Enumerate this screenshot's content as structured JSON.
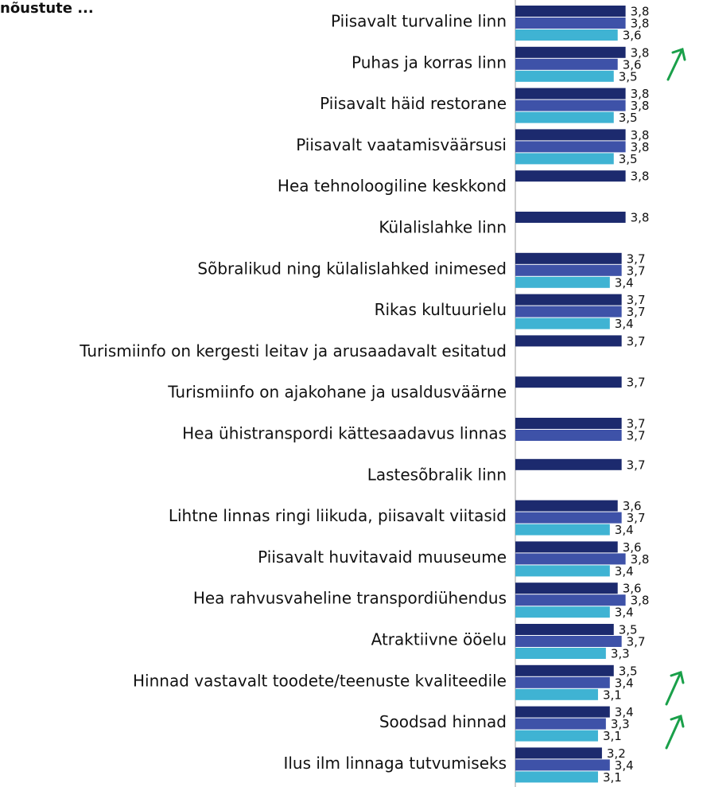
{
  "chart_data": {
    "type": "hbar",
    "title": "nõustute ...",
    "categories": [
      "Piisavalt turvaline linn",
      "Puhas ja korras linn",
      "Piisavalt häid restorane",
      "Piisavalt vaatamisväärsusi",
      "Hea tehnoloogiline keskkond",
      "Külalislahke linn",
      "Sõbralikud ning külalislahked inimesed",
      "Rikas kultuurielu",
      "Turismiinfo on kergesti leitav ja arusaadavalt esitatud",
      "Turismiinfo on ajakohane ja usaldusväärne",
      "Hea ühistranspordi kättesaadavus linnas",
      "Lastesõbralik linn",
      "Lihtne linnas ringi liikuda, piisavalt viitasid",
      "Piisavalt huvitavaid muuseume",
      "Hea rahvusvaheline transpordiühendus",
      "Atraktiivne ööelu",
      "Hinnad vastavalt toodete/teenuste kvaliteedile",
      "Soodsad hinnad",
      "Ilus ilm linnaga tutvumiseks"
    ],
    "series": [
      {
        "color": "#1c2a6e",
        "values": [
          3.8,
          3.8,
          3.8,
          3.8,
          3.8,
          3.8,
          3.7,
          3.7,
          3.7,
          3.7,
          3.7,
          3.7,
          3.6,
          3.6,
          3.6,
          3.5,
          3.5,
          3.4,
          3.2
        ],
        "value_labels": [
          "3,8",
          "3,8",
          "3,8",
          "3,8",
          "3,8",
          "3,8",
          "3,7",
          "3,7",
          "3,7",
          "3,7",
          "3,7",
          "3,7",
          "3,6",
          "3,6",
          "3,6",
          "3,5",
          "3,5",
          "3,4",
          "3,2"
        ]
      },
      {
        "color": "#3e52a8",
        "values": [
          3.8,
          3.6,
          3.8,
          3.8,
          null,
          null,
          3.7,
          3.7,
          null,
          null,
          3.7,
          null,
          3.7,
          3.8,
          3.8,
          3.7,
          3.4,
          3.3,
          3.4
        ],
        "value_labels": [
          "3,8",
          "3,6",
          "3,8",
          "3,8",
          null,
          null,
          "3,7",
          "3,7",
          null,
          null,
          "3,7",
          null,
          "3,7",
          "3,8",
          "3,8",
          "3,7",
          "3,4",
          "3,3",
          "3,4"
        ]
      },
      {
        "color": "#3fb3d3",
        "values": [
          3.6,
          3.5,
          3.5,
          3.5,
          null,
          null,
          3.4,
          3.4,
          null,
          null,
          null,
          null,
          3.4,
          3.4,
          3.4,
          3.3,
          3.1,
          3.1,
          3.1
        ],
        "value_labels": [
          "3,6",
          "3,5",
          "3,5",
          "3,5",
          null,
          null,
          "3,4",
          "3,4",
          null,
          null,
          null,
          null,
          "3,4",
          "3,4",
          "3,4",
          "3,3",
          "3,1",
          "3,1",
          "3,1"
        ]
      }
    ],
    "xlim": [
      1,
      5
    ]
  }
}
